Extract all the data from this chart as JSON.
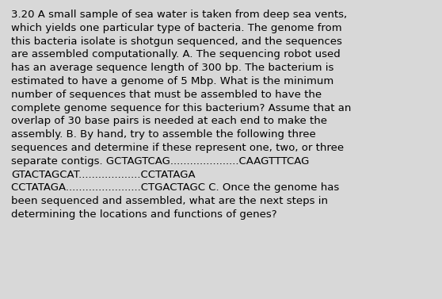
{
  "background_color": "#d8d8d8",
  "text_color": "#000000",
  "font_size": 9.5,
  "font_family": "DejaVu Sans",
  "line1": "3.20 A small sample of sea water is taken from deep sea vents,",
  "line2": "which yields one particular type of bacteria. The genome from",
  "line3": "this bacteria isolate is shotgun sequenced, and the sequences",
  "line4": "are assembled computationally. A. The sequencing robot used",
  "line5": "has an average sequence length of 300 bp. The bacterium is",
  "line6": "estimated to have a genome of 5 Mbp. What is the minimum",
  "line7": "number of sequences that must be assembled to have the",
  "line8": "complete genome sequence for this bacterium? Assume that an",
  "line9": "overlap of 30 base pairs is needed at each end to make the",
  "line10": "assembly. B. By hand, try to assemble the following three",
  "line11": "sequences and determine if these represent one, two, or three",
  "line12": "separate contigs. GCTAGTCAG.....................CAAGTTTCAG",
  "line13": "GTACTAGCAT...................CCTATAGA",
  "line14": "CCTATAGA.......................CTGACTAGC C. Once the genome has",
  "line15": "been sequenced and assembled, what are the next steps in",
  "line16": "determining the locations and functions of genes?",
  "figwidth": 5.58,
  "figheight": 3.77,
  "dpi": 100
}
